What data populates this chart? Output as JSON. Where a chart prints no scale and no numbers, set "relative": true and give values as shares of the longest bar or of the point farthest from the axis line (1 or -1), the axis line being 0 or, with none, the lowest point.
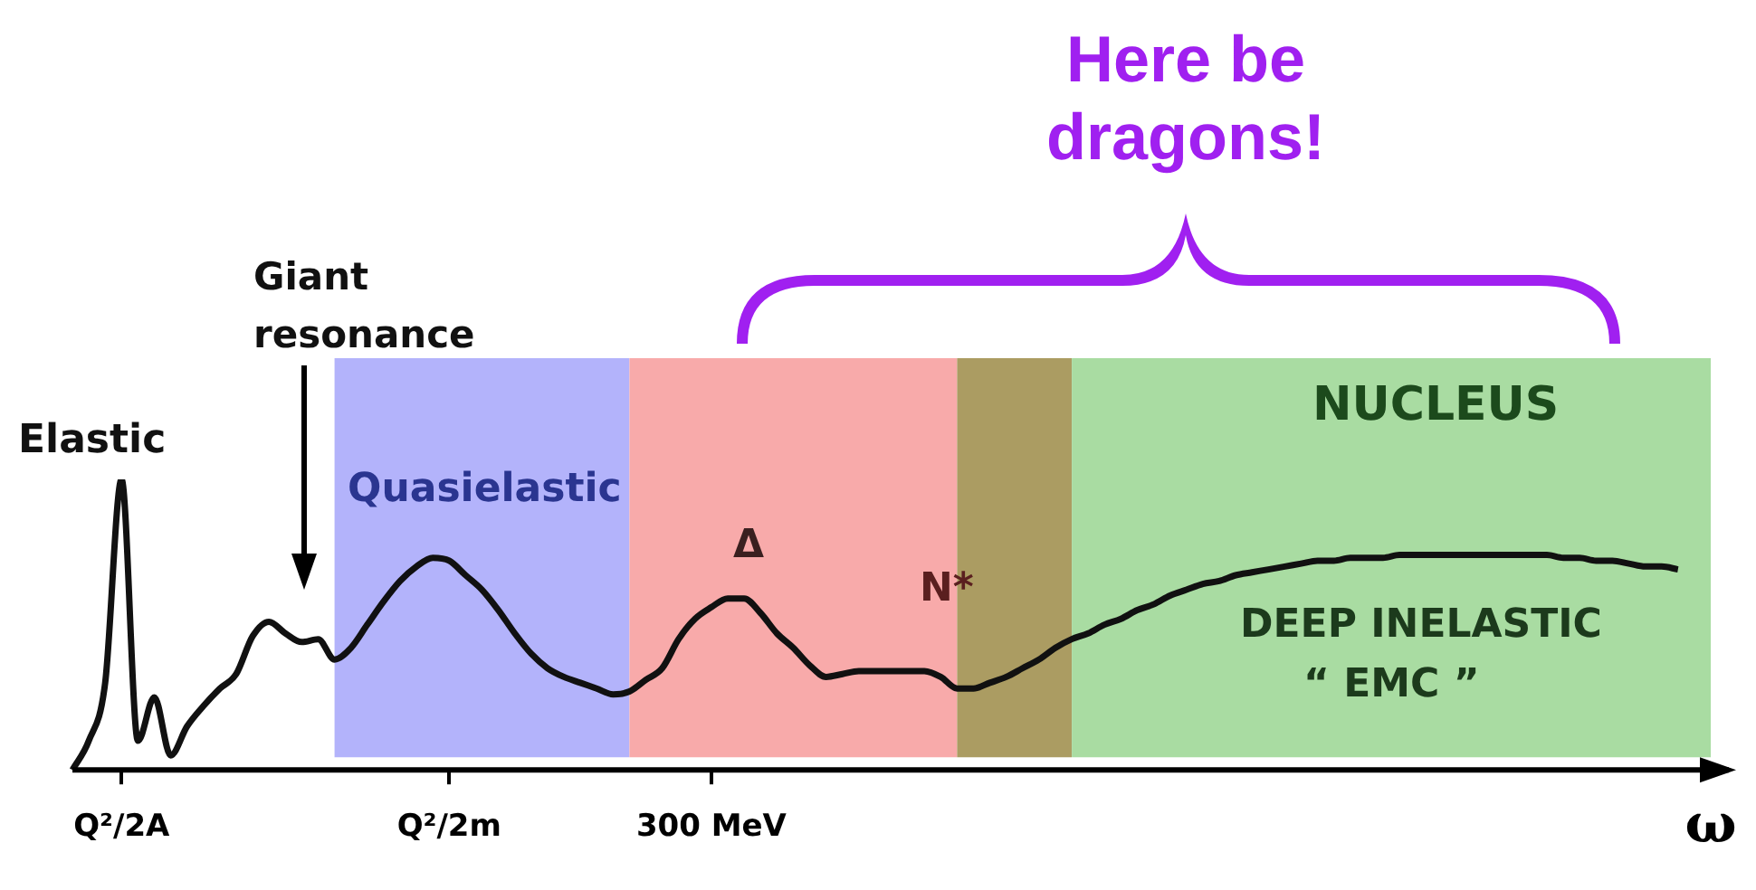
{
  "chart_data": {
    "type": "line",
    "relative": true,
    "xlabel": "ω",
    "categories": [
      null,
      null,
      null,
      "Q²/2A",
      null,
      null,
      null,
      null,
      null,
      null,
      null,
      null,
      null,
      null,
      null,
      null,
      null,
      null,
      null,
      null,
      null,
      null,
      null,
      "Q²/2m",
      null,
      null,
      null,
      null,
      null,
      null,
      null,
      null,
      null,
      null,
      null,
      null,
      null,
      null,
      null,
      "300 MeV",
      null,
      null,
      null,
      null,
      null,
      null,
      null,
      null,
      null,
      null,
      null,
      null,
      null,
      null,
      null,
      null,
      null,
      null,
      null,
      null,
      null,
      null,
      null,
      null,
      null,
      null,
      null,
      null,
      null,
      null,
      null,
      null,
      null,
      null,
      null,
      null,
      null,
      null,
      null,
      null,
      null,
      null,
      null,
      null,
      null,
      null,
      null,
      null,
      null,
      null,
      null,
      null,
      null,
      null,
      null,
      null,
      null,
      null,
      null,
      null,
      null
    ],
    "series": [
      {
        "color": "#111111",
        "values": [
          0,
          0.1,
          0.3,
          1,
          0.1,
          0.25,
          0.05,
          0.15,
          0.22,
          0.28,
          0.33,
          0.46,
          0.51,
          0.47,
          0.44,
          0.45,
          0.38,
          0.42,
          0.5,
          0.58,
          0.65,
          0.7,
          0.73,
          0.72,
          0.67,
          0.62,
          0.55,
          0.47,
          0.4,
          0.35,
          0.32,
          0.3,
          0.28,
          0.26,
          0.27,
          0.31,
          0.35,
          0.45,
          0.52,
          0.56,
          0.59,
          0.59,
          0.54,
          0.47,
          0.42,
          0.36,
          0.32,
          0.33,
          0.34,
          0.34,
          0.34,
          0.34,
          0.34,
          0.32,
          0.28,
          0.28,
          0.3,
          0.32,
          0.35,
          0.38,
          0.42,
          0.45,
          0.47,
          0.5,
          0.52,
          0.55,
          0.57,
          0.6,
          0.62,
          0.64,
          0.65,
          0.67,
          0.68,
          0.69,
          0.7,
          0.71,
          0.72,
          0.72,
          0.73,
          0.73,
          0.73,
          0.74,
          0.74,
          0.74,
          0.74,
          0.74,
          0.74,
          0.74,
          0.74,
          0.74,
          0.74,
          0.73,
          0.73,
          0.72,
          0.72,
          0.71,
          0.7,
          0.7,
          0.69,
          null,
          null
        ]
      }
    ],
    "annotations": [
      "Elastic",
      "Giant resonance",
      "Quasielastic",
      "Δ",
      "N*",
      "NUCLEUS",
      "DEEP INELASTIC",
      "“ EMC ”",
      "Here be dragons!"
    ]
  }
}
